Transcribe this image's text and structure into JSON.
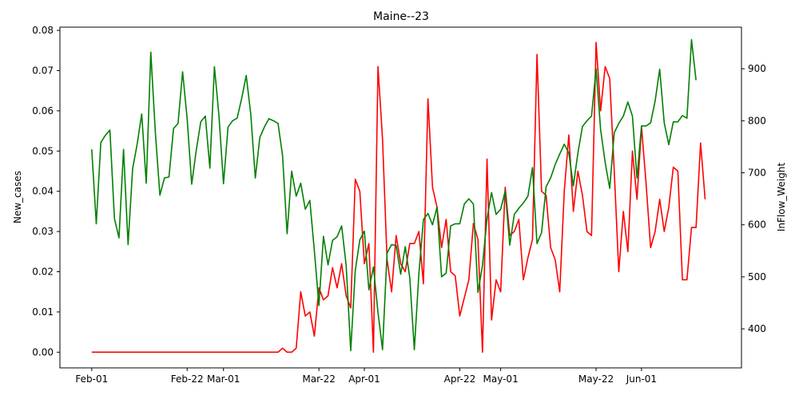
{
  "chart_data": {
    "type": "line",
    "title": "Maine--23",
    "xlabel": "",
    "ylabel_left": "New_cases",
    "ylabel_right": "InFlow_Weight",
    "x_start": "2020-02-01",
    "x_end": "2020-06-16",
    "xlim": [
      "2020-01-25",
      "2020-06-23"
    ],
    "x_ticks": [
      {
        "date": "2020-02-01",
        "label": "Feb-01"
      },
      {
        "date": "2020-02-22",
        "label": "Feb-22"
      },
      {
        "date": "2020-03-01",
        "label": "Mar-01"
      },
      {
        "date": "2020-03-22",
        "label": "Mar-22"
      },
      {
        "date": "2020-04-01",
        "label": "Apr-01"
      },
      {
        "date": "2020-04-22",
        "label": "Apr-22"
      },
      {
        "date": "2020-05-01",
        "label": "May-01"
      },
      {
        "date": "2020-05-22",
        "label": "May-22"
      },
      {
        "date": "2020-06-01",
        "label": "Jun-01"
      }
    ],
    "y_left": {
      "lim": [
        -0.0039,
        0.0808
      ],
      "ticks": [
        "0.00",
        "0.01",
        "0.02",
        "0.03",
        "0.04",
        "0.05",
        "0.06",
        "0.07",
        "0.08"
      ]
    },
    "y_right": {
      "lim": [
        325,
        980
      ],
      "ticks": [
        "400",
        "500",
        "600",
        "700",
        "800",
        "900"
      ]
    },
    "series": [
      {
        "axis": "left",
        "color": "#ff0000",
        "values": [
          0,
          0,
          0,
          0,
          0,
          0,
          0,
          0,
          0,
          0,
          0,
          0,
          0,
          0,
          0,
          0,
          0,
          0,
          0,
          0,
          0,
          0,
          0,
          0,
          0,
          0,
          0,
          0,
          0,
          0,
          0,
          0,
          0,
          0,
          0,
          0,
          0,
          0,
          0,
          0,
          0,
          0,
          0.001,
          0,
          0,
          0.001,
          0.015,
          0.009,
          0.01,
          0.004,
          0.016,
          0.013,
          0.014,
          0.021,
          0.016,
          0.022,
          0.014,
          0.011,
          0.043,
          0.04,
          0.022,
          0.027,
          0,
          0.071,
          0.053,
          0.023,
          0.015,
          0.029,
          0.022,
          0.02,
          0.027,
          0.027,
          0.03,
          0.017,
          0.063,
          0.041,
          0.036,
          0.026,
          0.033,
          0.02,
          0.019,
          0.009,
          0.0135,
          0.018,
          0.032,
          0.028,
          0,
          0.048,
          0.008,
          0.018,
          0.015,
          0.041,
          0.029,
          0.03,
          0.033,
          0.018,
          0.0235,
          0.028,
          0.074,
          0.04,
          0.039,
          0.026,
          0.023,
          0.015,
          0.04,
          0.054,
          0.035,
          0.045,
          0.039,
          0.03,
          0.029,
          0.077,
          0.06,
          0.071,
          0.068,
          0.045,
          0.02,
          0.035,
          0.025,
          0.05,
          0.038,
          0.056,
          0.042,
          0.026,
          0.03,
          0.038,
          0.03,
          0.036,
          0.046,
          0.045,
          0.018,
          0.018,
          0.031,
          0.031,
          0.052,
          0.038
        ]
      },
      {
        "axis": "right",
        "color": "#008000",
        "values": [
          745,
          602,
          758,
          772,
          782,
          612,
          575,
          745,
          562,
          708,
          755,
          813,
          680,
          932,
          778,
          657,
          690,
          692,
          785,
          795,
          894,
          804,
          678,
          743,
          798,
          809,
          709,
          904,
          810,
          679,
          788,
          800,
          805,
          843,
          887,
          813,
          690,
          768,
          788,
          804,
          800,
          795,
          733,
          583,
          703,
          655,
          680,
          630,
          647,
          550,
          445,
          578,
          523,
          570,
          577,
          598,
          522,
          358,
          512,
          571,
          588,
          475,
          519,
          432,
          360,
          546,
          562,
          560,
          505,
          558,
          498,
          360,
          506,
          610,
          622,
          600,
          634,
          500,
          507,
          598,
          602,
          602,
          640,
          650,
          640,
          470,
          522,
          612,
          662,
          620,
          630,
          665,
          561,
          620,
          632,
          642,
          655,
          710,
          564,
          585,
          673,
          690,
          716,
          736,
          755,
          738,
          675,
          738,
          789,
          800,
          809,
          900,
          783,
          720,
          670,
          777,
          795,
          809,
          836,
          809,
          690,
          790,
          790,
          796,
          838,
          899,
          796,
          754,
          798,
          798,
          810,
          805,
          956,
          878
        ]
      }
    ]
  }
}
